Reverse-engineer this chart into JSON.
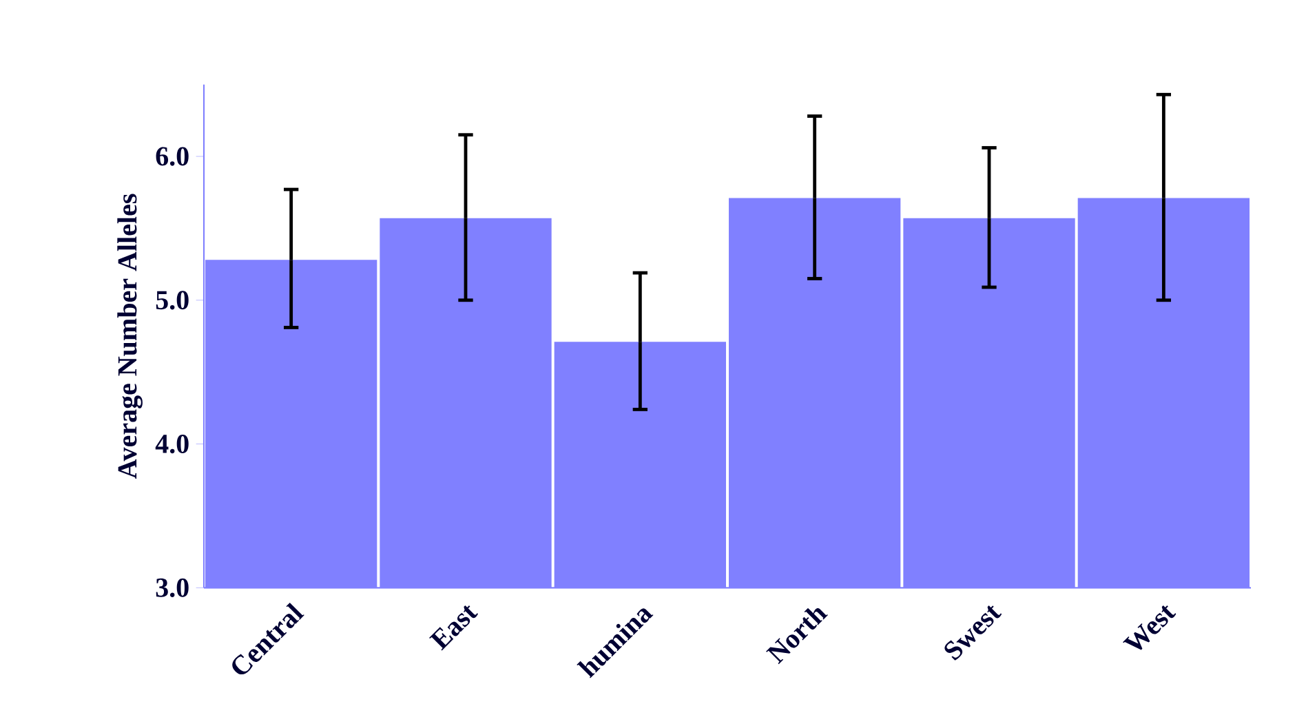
{
  "chart_data": {
    "type": "bar",
    "ylabel": "Average Number Alleles",
    "categories": [
      "Central",
      "East",
      "humina",
      "North",
      "Swest",
      "West"
    ],
    "values": [
      5.28,
      5.57,
      4.71,
      5.71,
      5.57,
      5.71
    ],
    "errors": [
      [
        4.81,
        5.77
      ],
      [
        5.0,
        6.15
      ],
      [
        4.24,
        5.19
      ],
      [
        5.15,
        6.28
      ],
      [
        5.09,
        6.06
      ],
      [
        5.0,
        6.43
      ]
    ],
    "color": "#8080ff",
    "ylim": [
      3,
      6.5
    ],
    "yticks": [
      {
        "value": 3,
        "label": "3.0"
      },
      {
        "value": 4,
        "label": "4.0"
      },
      {
        "value": 5,
        "label": "5.0"
      },
      {
        "value": 6,
        "label": "6.0"
      }
    ],
    "grid": false
  }
}
